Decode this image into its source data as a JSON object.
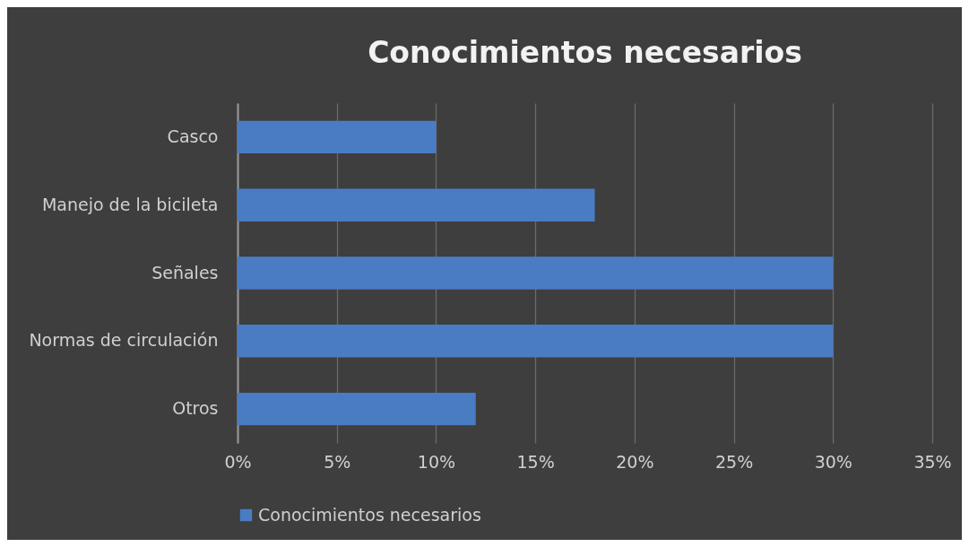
{
  "chart_data": {
    "type": "bar",
    "orientation": "horizontal",
    "title": "Conocimientos necesarios",
    "categories": [
      "Casco",
      "Manejo de la bicileta",
      "Señales",
      "Normas de circulación",
      "Otros"
    ],
    "series": [
      {
        "name": "Conocimientos necesarios",
        "color": "#4a7cc4",
        "values": [
          10,
          18,
          30,
          30,
          12
        ]
      }
    ],
    "xlim": [
      0,
      35
    ],
    "xticks": [
      {
        "value": 0,
        "label": "0%"
      },
      {
        "value": 5,
        "label": "5%"
      },
      {
        "value": 10,
        "label": "10%"
      },
      {
        "value": 15,
        "label": "15%"
      },
      {
        "value": 20,
        "label": "20%"
      },
      {
        "value": 25,
        "label": "25%"
      },
      {
        "value": 30,
        "label": "30%"
      },
      {
        "value": 35,
        "label": "35%"
      }
    ],
    "grid": "x",
    "legend": "bottom"
  }
}
